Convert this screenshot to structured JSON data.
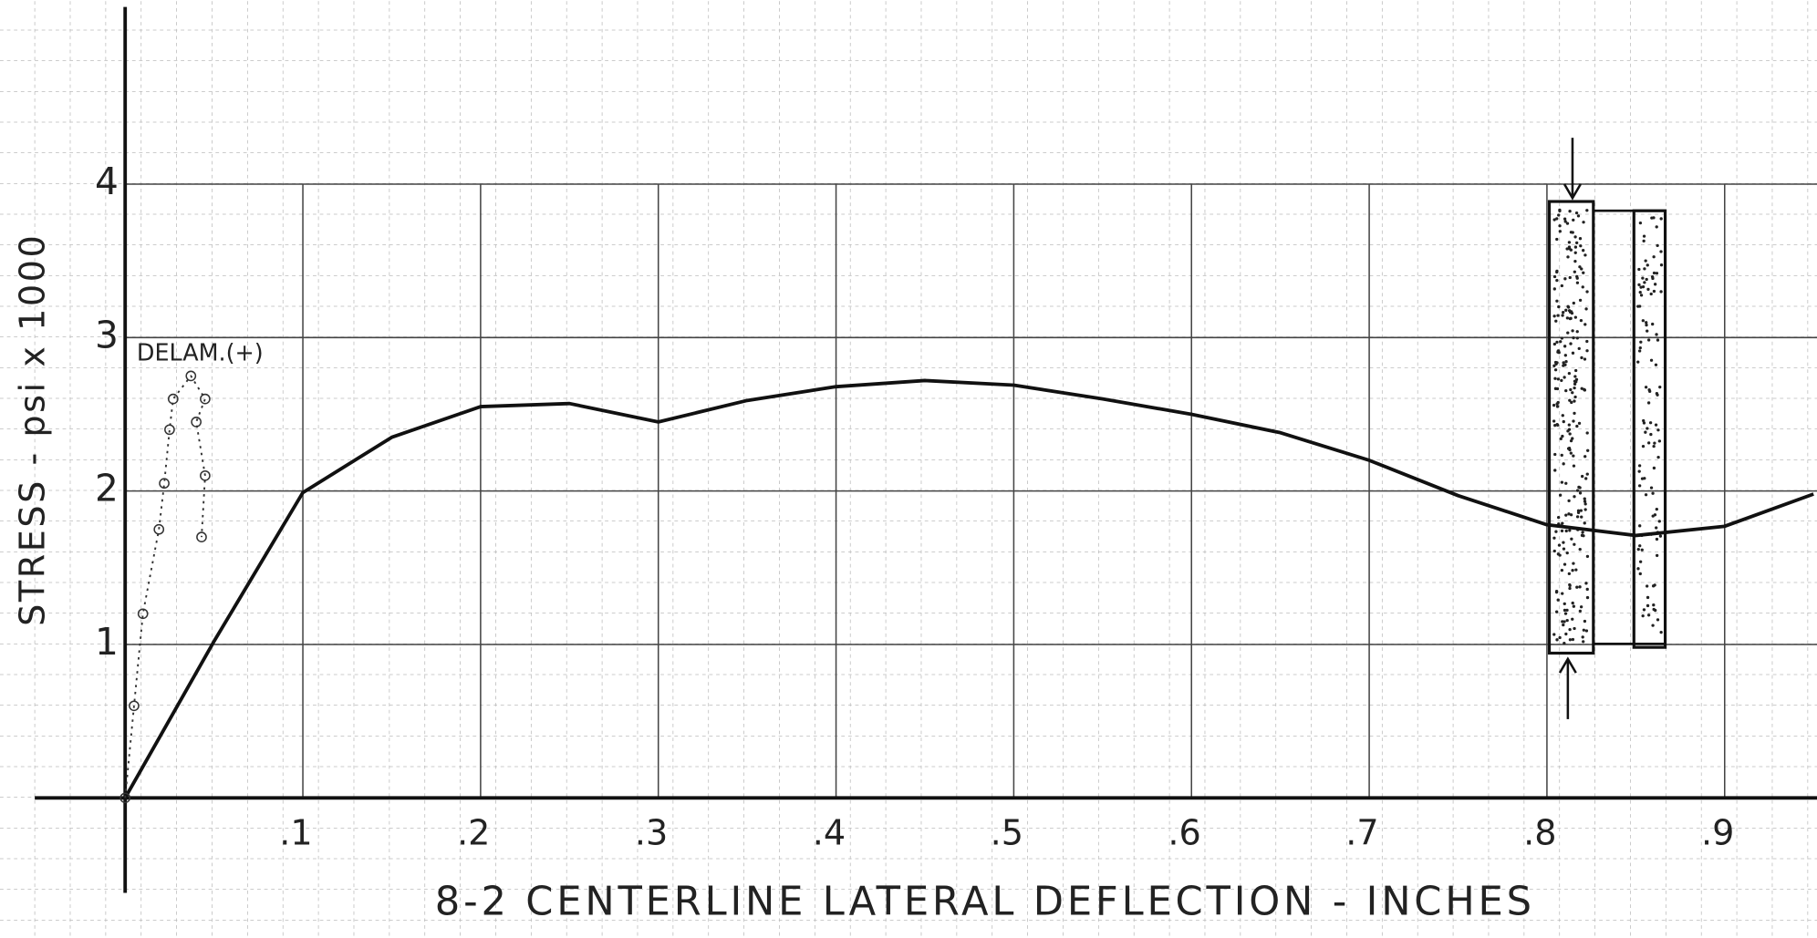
{
  "chart_data": {
    "type": "line",
    "title": "8-2  CENTERLINE  LATERAL  DEFLECTION  -  INCHES",
    "y_label": "STRESS - psi x 1000",
    "annotation": "DELAM.(+)",
    "xlim": [
      0,
      0.95
    ],
    "ylim": [
      0,
      4
    ],
    "xticks": [
      {
        "value": 0.1,
        "label": ".1"
      },
      {
        "value": 0.2,
        "label": ".2"
      },
      {
        "value": 0.3,
        "label": ".3"
      },
      {
        "value": 0.4,
        "label": ".4"
      },
      {
        "value": 0.5,
        "label": ".5"
      },
      {
        "value": 0.6,
        "label": ".6"
      },
      {
        "value": 0.7,
        "label": ".7"
      },
      {
        "value": 0.8,
        "label": ".8"
      },
      {
        "value": 0.9,
        "label": ".9"
      }
    ],
    "yticks": [
      1,
      2,
      3,
      4
    ],
    "grid": true,
    "series": [
      {
        "color": "#111",
        "style": "solid",
        "x": [
          0,
          0.05,
          0.1,
          0.15,
          0.2,
          0.25,
          0.3,
          0.35,
          0.4,
          0.45,
          0.5,
          0.55,
          0.6,
          0.65,
          0.7,
          0.75,
          0.8,
          0.85,
          0.9,
          0.95
        ],
        "values": [
          0,
          1.02,
          1.99,
          2.35,
          2.55,
          2.57,
          2.45,
          2.59,
          2.68,
          2.72,
          2.69,
          2.6,
          2.5,
          2.38,
          2.2,
          1.97,
          1.78,
          1.71,
          1.77,
          1.98
        ]
      },
      {
        "color": "#333",
        "style": "dotted",
        "x": [
          0,
          0.005,
          0.01,
          0.019,
          0.022,
          0.025,
          0.027,
          0.037,
          0.045,
          0.04,
          0.045,
          0.043
        ],
        "values": [
          0,
          0.6,
          1.2,
          1.75,
          2.05,
          2.4,
          2.6,
          2.75,
          2.6,
          2.45,
          2.1,
          1.7
        ]
      }
    ]
  }
}
